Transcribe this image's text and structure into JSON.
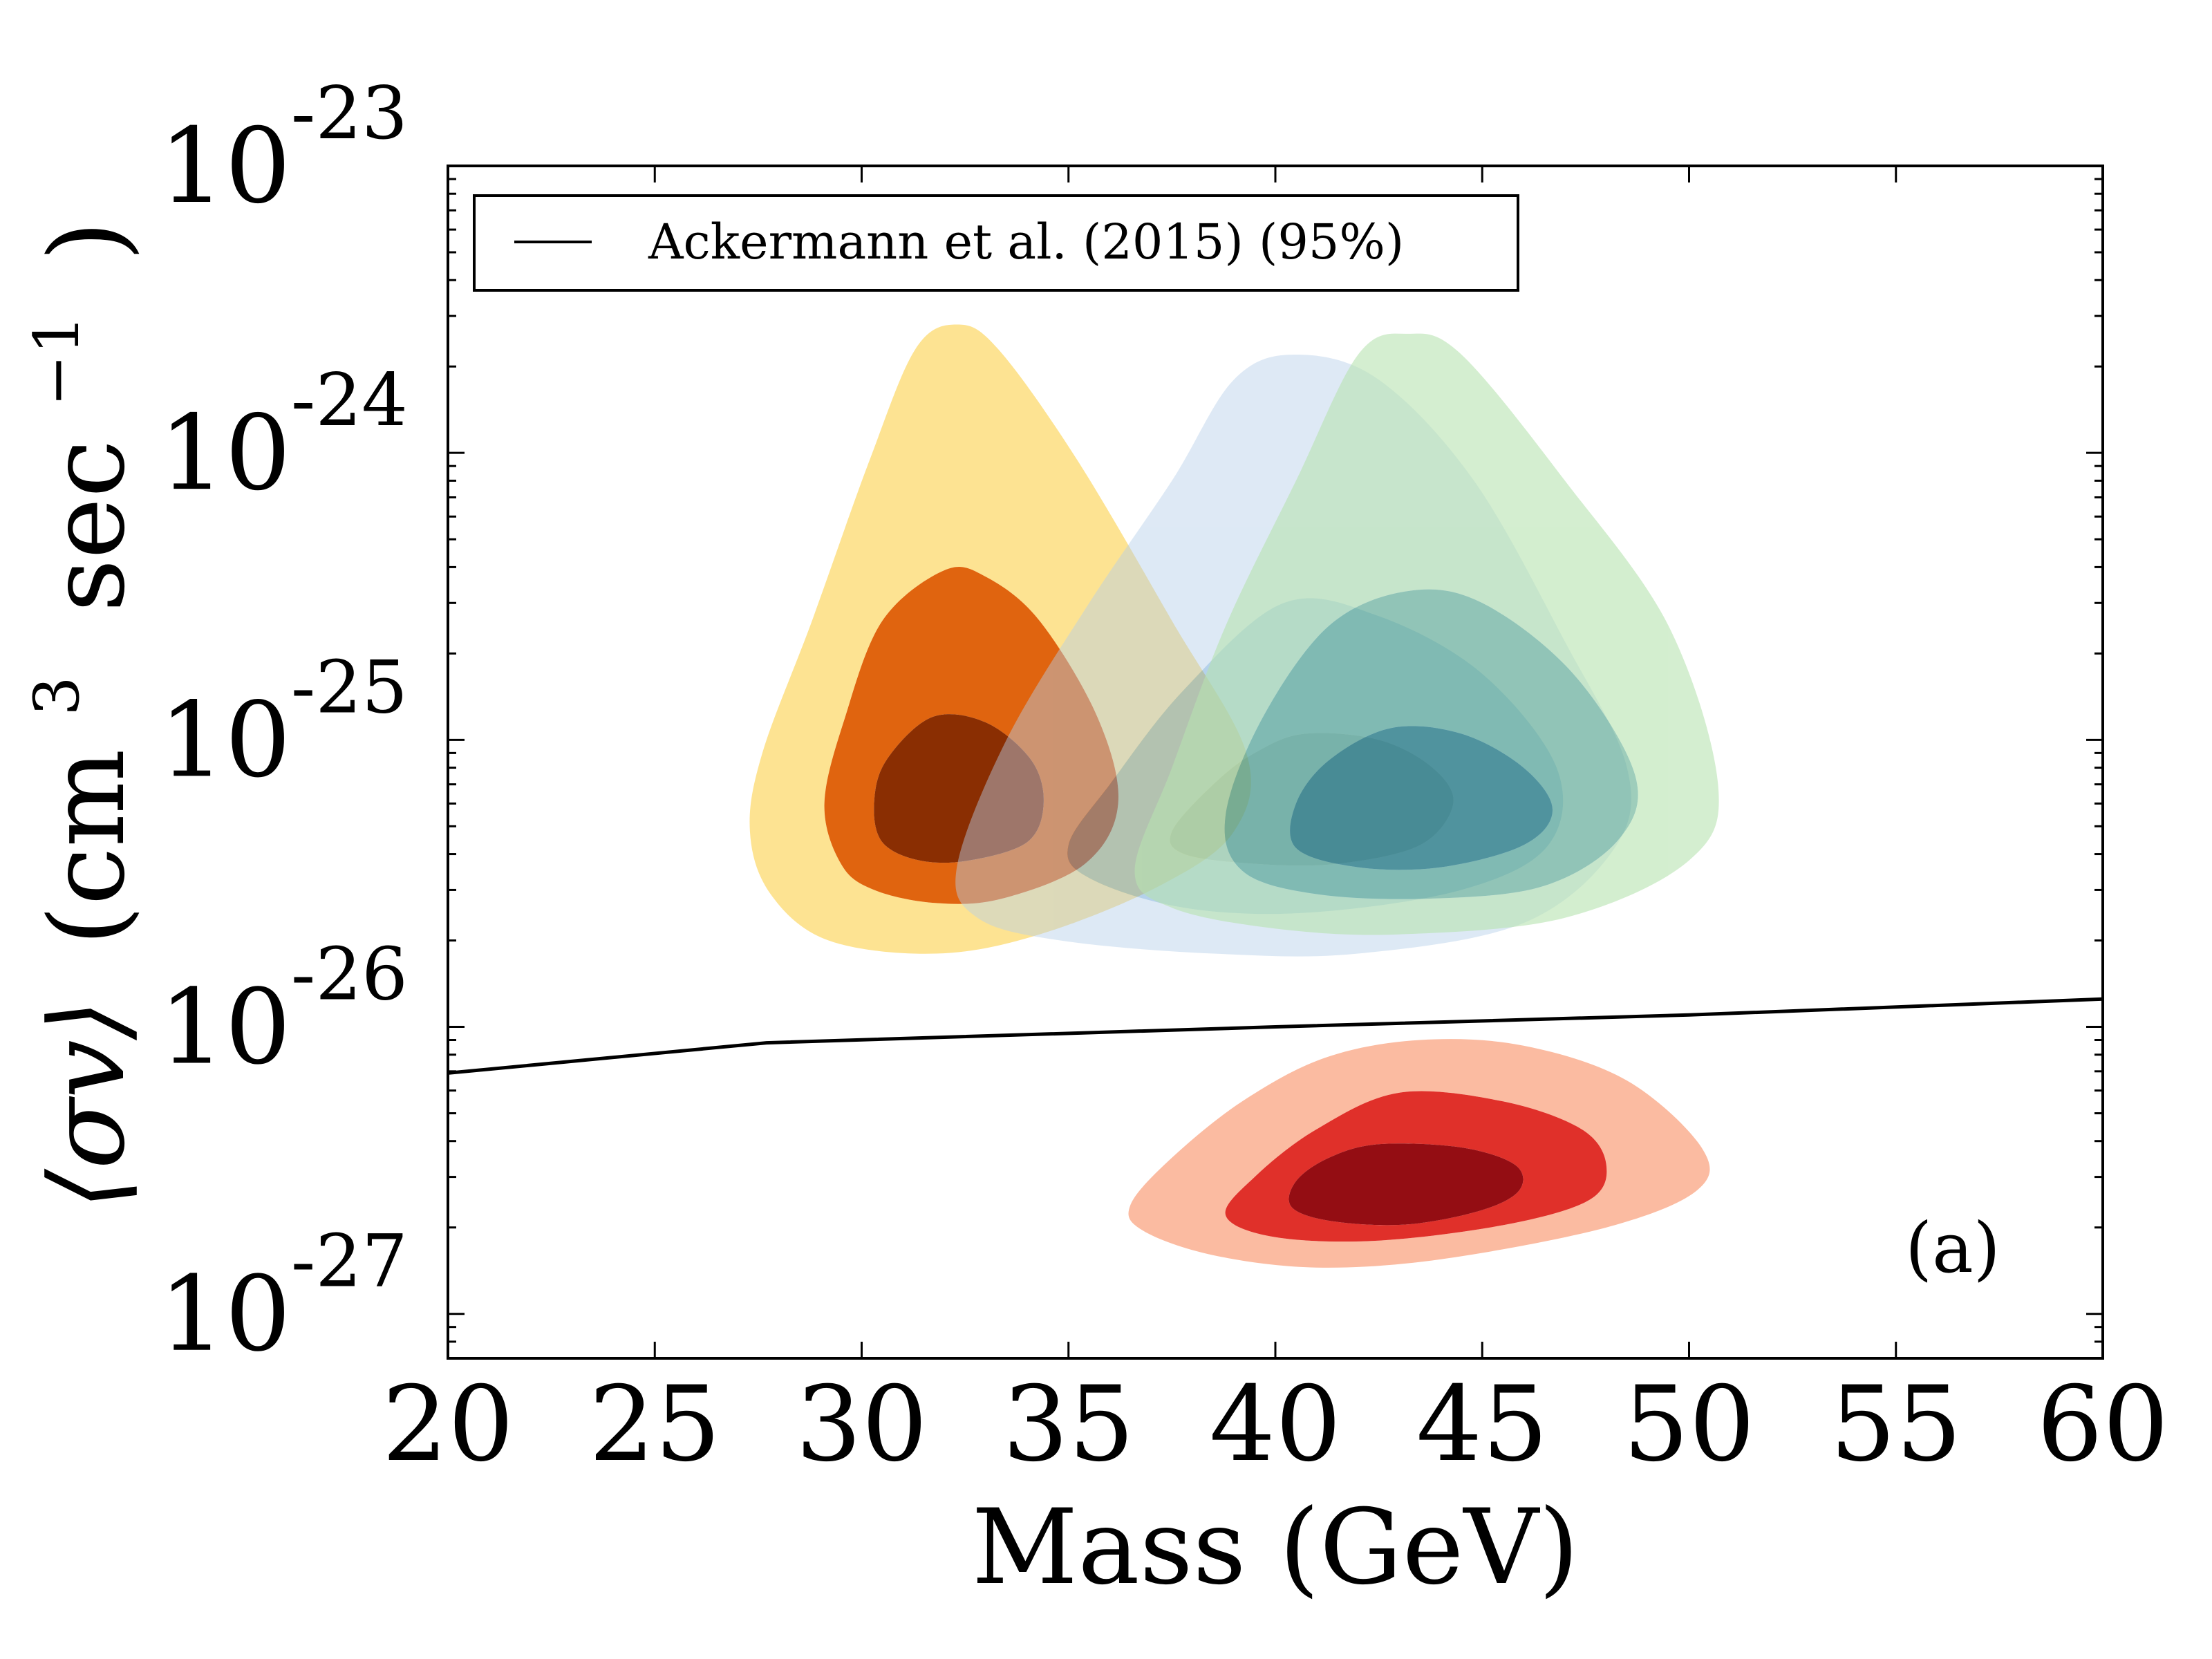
{
  "chart_data": {
    "type": "contour",
    "panel_label": "(a)",
    "xlabel": "Mass (GeV)",
    "ylabel": {
      "math": "⟨σv⟩",
      "open": "(cm",
      "sup": "3",
      "mid": "sec",
      "sup2": "−1",
      "close": ")"
    },
    "x_scale": "linear",
    "y_scale": "log",
    "xlim": [
      20,
      60
    ],
    "ylim": [
      7e-28,
      1e-23
    ],
    "x_ticks": [
      {
        "value": 20,
        "label": "20"
      },
      {
        "value": 25,
        "label": "25"
      },
      {
        "value": 30,
        "label": "30"
      },
      {
        "value": 35,
        "label": "35"
      },
      {
        "value": 40,
        "label": "40"
      },
      {
        "value": 45,
        "label": "45"
      },
      {
        "value": 50,
        "label": "50"
      },
      {
        "value": 55,
        "label": "55"
      },
      {
        "value": 60,
        "label": "60"
      }
    ],
    "y_ticks": [
      {
        "value": 1e-23,
        "base": "10",
        "exp": "-23"
      },
      {
        "value": 1e-24,
        "base": "10",
        "exp": "-24"
      },
      {
        "value": 1e-25,
        "base": "10",
        "exp": "-25"
      },
      {
        "value": 1e-26,
        "base": "10",
        "exp": "-26"
      },
      {
        "value": 1e-27,
        "base": "10",
        "exp": "-27"
      }
    ],
    "grid": false,
    "legend": {
      "placement": "top-left",
      "entries": [
        {
          "label": "Ackermann et al. (2015) (95%)",
          "color": "#000000",
          "style": "line"
        }
      ]
    },
    "limit_line": {
      "label": "Ackermann et al. (2015) (95%)",
      "color": "#000000",
      "points": [
        {
          "x": 20,
          "y": 6.9e-27
        },
        {
          "x": 27.7,
          "y": 8.8e-27
        },
        {
          "x": 40,
          "y": 1e-26
        },
        {
          "x": 50,
          "y": 1.1e-26
        },
        {
          "x": 60,
          "y": 1.25e-26
        }
      ]
    },
    "contour_sets": [
      {
        "colors": [
          "#fde392",
          "#e0640f",
          "#8a2e02"
        ],
        "opacity": 1,
        "regions": [
          [
            [
              32.3,
              2.8e-24
            ],
            [
              33.3,
              2.3e-24
            ],
            [
              35.2,
              9.5e-25
            ],
            [
              37.5,
              2.6e-25
            ],
            [
              39.3,
              9e-26
            ],
            [
              39.0,
              4.8e-26
            ],
            [
              37.2,
              3.1e-26
            ],
            [
              34.3,
              2.1e-26
            ],
            [
              31.8,
              1.8e-26
            ],
            [
              29.2,
              2e-26
            ],
            [
              27.8,
              2.9e-26
            ],
            [
              27.3,
              4.8e-26
            ],
            [
              27.6,
              9e-26
            ],
            [
              28.8,
              2.6e-25
            ],
            [
              30.2,
              9.5e-25
            ],
            [
              31.3,
              2.3e-24
            ]
          ],
          [
            [
              32.0,
              3.9e-25
            ],
            [
              33.0,
              3.7e-25
            ],
            [
              34.3,
              2.6e-25
            ],
            [
              35.7,
              1.2e-25
            ],
            [
              36.2,
              6e-26
            ],
            [
              35.4,
              3.7e-26
            ],
            [
              33.4,
              2.8e-26
            ],
            [
              31.8,
              2.7e-26
            ],
            [
              30.3,
              3e-26
            ],
            [
              29.5,
              3.7e-26
            ],
            [
              29.1,
              6e-26
            ],
            [
              29.6,
              1.2e-25
            ],
            [
              30.5,
              2.6e-25
            ]
          ],
          [
            [
              31.7,
              1.2e-25
            ],
            [
              33.0,
              1.15e-25
            ],
            [
              34.1,
              8.5e-26
            ],
            [
              34.4,
              6e-26
            ],
            [
              34.0,
              4.4e-26
            ],
            [
              32.6,
              3.8e-26
            ],
            [
              31.4,
              3.8e-26
            ],
            [
              30.5,
              4.4e-26
            ],
            [
              30.3,
              6e-26
            ],
            [
              30.6,
              8.5e-26
            ]
          ]
        ]
      },
      {
        "colors": [
          "#b5cfe9",
          "#5b9bd5",
          "#2f6ea3"
        ],
        "opacity": 0.45,
        "regions": [
          [
            [
              40.5,
              2.2e-24
            ],
            [
              42.5,
              1.8e-24
            ],
            [
              44.8,
              8e-25
            ],
            [
              47.0,
              2.2e-25
            ],
            [
              48.5,
              8e-26
            ],
            [
              48.2,
              4.2e-26
            ],
            [
              46.0,
              2.3e-26
            ],
            [
              42.0,
              1.8e-26
            ],
            [
              38.5,
              1.8e-26
            ],
            [
              34.8,
              2e-26
            ],
            [
              32.8,
              2.4e-26
            ],
            [
              32.3,
              3.6e-26
            ],
            [
              33.5,
              1e-25
            ],
            [
              35.5,
              3e-25
            ],
            [
              37.5,
              8e-25
            ],
            [
              39.0,
              1.8e-24
            ]
          ],
          [
            [
              40.2,
              3e-25
            ],
            [
              42.5,
              2.7e-25
            ],
            [
              45.0,
              1.7e-25
            ],
            [
              46.8,
              8e-26
            ],
            [
              46.6,
              4.3e-26
            ],
            [
              44.5,
              3e-26
            ],
            [
              40.8,
              2.5e-26
            ],
            [
              37.8,
              2.6e-26
            ],
            [
              35.5,
              3.3e-26
            ],
            [
              35.0,
              4.3e-26
            ],
            [
              36.0,
              7e-26
            ],
            [
              37.8,
              1.5e-25
            ]
          ],
          [
            [
              40.7,
              1.05e-25
            ],
            [
              42.5,
              1e-25
            ],
            [
              43.8,
              8e-26
            ],
            [
              44.3,
              6e-26
            ],
            [
              43.5,
              4.3e-26
            ],
            [
              41.5,
              3.7e-26
            ],
            [
              39.5,
              3.7e-26
            ],
            [
              37.8,
              4e-26
            ],
            [
              37.5,
              4.8e-26
            ],
            [
              38.5,
              7e-26
            ],
            [
              39.5,
              9e-26
            ]
          ]
        ]
      },
      {
        "colors": [
          "#b7e3b0",
          "#5fac8e",
          "#0e6a6c"
        ],
        "opacity": 0.6,
        "regions": [
          [
            [
              43.2,
              2.6e-24
            ],
            [
              44.5,
              2.2e-24
            ],
            [
              47.0,
              8e-25
            ],
            [
              49.5,
              2.5e-25
            ],
            [
              50.7,
              7e-26
            ],
            [
              50.0,
              3.8e-26
            ],
            [
              47.0,
              2.4e-26
            ],
            [
              43.0,
              2.1e-26
            ],
            [
              40.0,
              2.2e-26
            ],
            [
              37.5,
              2.6e-26
            ],
            [
              36.6,
              3.5e-26
            ],
            [
              37.5,
              8e-26
            ],
            [
              38.8,
              2.5e-25
            ],
            [
              40.5,
              8e-25
            ],
            [
              42.0,
              2.2e-24
            ]
          ],
          [
            [
              43.2,
              3.3e-25
            ],
            [
              45.0,
              3e-25
            ],
            [
              47.2,
              1.7e-25
            ],
            [
              48.7,
              7.5e-26
            ],
            [
              48.3,
              4.5e-26
            ],
            [
              46.5,
              3.1e-26
            ],
            [
              43.8,
              2.8e-26
            ],
            [
              41.0,
              2.9e-26
            ],
            [
              39.2,
              3.5e-26
            ],
            [
              38.8,
              5.5e-26
            ],
            [
              39.7,
              1.2e-25
            ],
            [
              41.3,
              2.5e-25
            ]
          ],
          [
            [
              42.8,
              1.1e-25
            ],
            [
              44.5,
              1.05e-25
            ],
            [
              46.0,
              8e-26
            ],
            [
              46.7,
              5.7e-26
            ],
            [
              46.0,
              4.3e-26
            ],
            [
              44.0,
              3.6e-26
            ],
            [
              42.0,
              3.6e-26
            ],
            [
              40.5,
              4.2e-26
            ],
            [
              40.5,
              6e-26
            ],
            [
              41.3,
              8.5e-26
            ]
          ]
        ]
      },
      {
        "colors": [
          "#fbbba1",
          "#e0302a",
          "#940d13"
        ],
        "opacity": 1,
        "regions": [
          [
            [
              43.5,
              9e-27
            ],
            [
              46.0,
              8.6e-27
            ],
            [
              48.5,
              6.5e-27
            ],
            [
              50.3,
              3.8e-27
            ],
            [
              50.2,
              2.7e-27
            ],
            [
              48.0,
              2e-27
            ],
            [
              44.0,
              1.55e-27
            ],
            [
              41.0,
              1.45e-27
            ],
            [
              38.5,
              1.6e-27
            ],
            [
              36.8,
              1.95e-27
            ],
            [
              36.5,
              2.4e-27
            ],
            [
              37.5,
              3.5e-27
            ],
            [
              39.2,
              5.5e-27
            ],
            [
              41.2,
              7.8e-27
            ]
          ],
          [
            [
              43.0,
              5.9e-27
            ],
            [
              45.5,
              5.5e-27
            ],
            [
              47.4,
              4.4e-27
            ],
            [
              48.0,
              3.3e-27
            ],
            [
              47.6,
              2.5e-27
            ],
            [
              45.6,
              2.05e-27
            ],
            [
              42.5,
              1.8e-27
            ],
            [
              40.0,
              1.85e-27
            ],
            [
              38.8,
              2.2e-27
            ],
            [
              39.5,
              3e-27
            ],
            [
              41.0,
              4.4e-27
            ]
          ],
          [
            [
              42.5,
              3.9e-27
            ],
            [
              44.5,
              3.8e-27
            ],
            [
              45.8,
              3.3e-27
            ],
            [
              45.9,
              2.7e-27
            ],
            [
              45.0,
              2.3e-27
            ],
            [
              43.2,
              2.05e-27
            ],
            [
              41.4,
              2.1e-27
            ],
            [
              40.4,
              2.35e-27
            ],
            [
              40.5,
              2.9e-27
            ],
            [
              41.3,
              3.5e-27
            ]
          ]
        ]
      }
    ]
  }
}
